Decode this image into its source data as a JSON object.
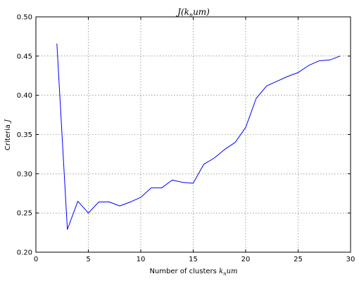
{
  "chart_data": {
    "type": "line",
    "title": "J(k_num)",
    "xlabel": "Number of clusters k_num",
    "ylabel": "Criteria J",
    "xlim": [
      0,
      30
    ],
    "ylim": [
      0.2,
      0.5
    ],
    "xticks": [
      0,
      5,
      10,
      15,
      20,
      25,
      30
    ],
    "yticks": [
      0.2,
      0.25,
      0.3,
      0.35,
      0.4,
      0.45,
      0.5
    ],
    "xtick_labels": [
      "0",
      "5",
      "10",
      "15",
      "20",
      "25",
      "30"
    ],
    "ytick_labels": [
      "0.20",
      "0.25",
      "0.30",
      "0.35",
      "0.40",
      "0.45",
      "0.50"
    ],
    "grid": true,
    "series": [
      {
        "color": "#0000ff",
        "x": [
          2,
          3,
          4,
          5,
          6,
          7,
          8,
          9,
          10,
          11,
          12,
          13,
          14,
          15,
          16,
          17,
          18,
          19,
          20,
          21,
          22,
          23,
          24,
          25,
          26,
          27,
          28,
          29
        ],
        "y": [
          0.466,
          0.229,
          0.265,
          0.25,
          0.264,
          0.264,
          0.259,
          0.264,
          0.27,
          0.282,
          0.282,
          0.292,
          0.289,
          0.288,
          0.312,
          0.32,
          0.331,
          0.34,
          0.359,
          0.396,
          0.412,
          0.418,
          0.424,
          0.429,
          0.438,
          0.444,
          0.445,
          0.45
        ]
      }
    ]
  },
  "title_parts": {
    "main": "J(k",
    "sub": "n",
    "rest": "um)"
  },
  "xlabel_parts": {
    "text": "Number of clusters ",
    "math": "k",
    "sub": "n",
    "rest": "um"
  },
  "ylabel_parts": {
    "text": "Criteria ",
    "math": "J"
  }
}
